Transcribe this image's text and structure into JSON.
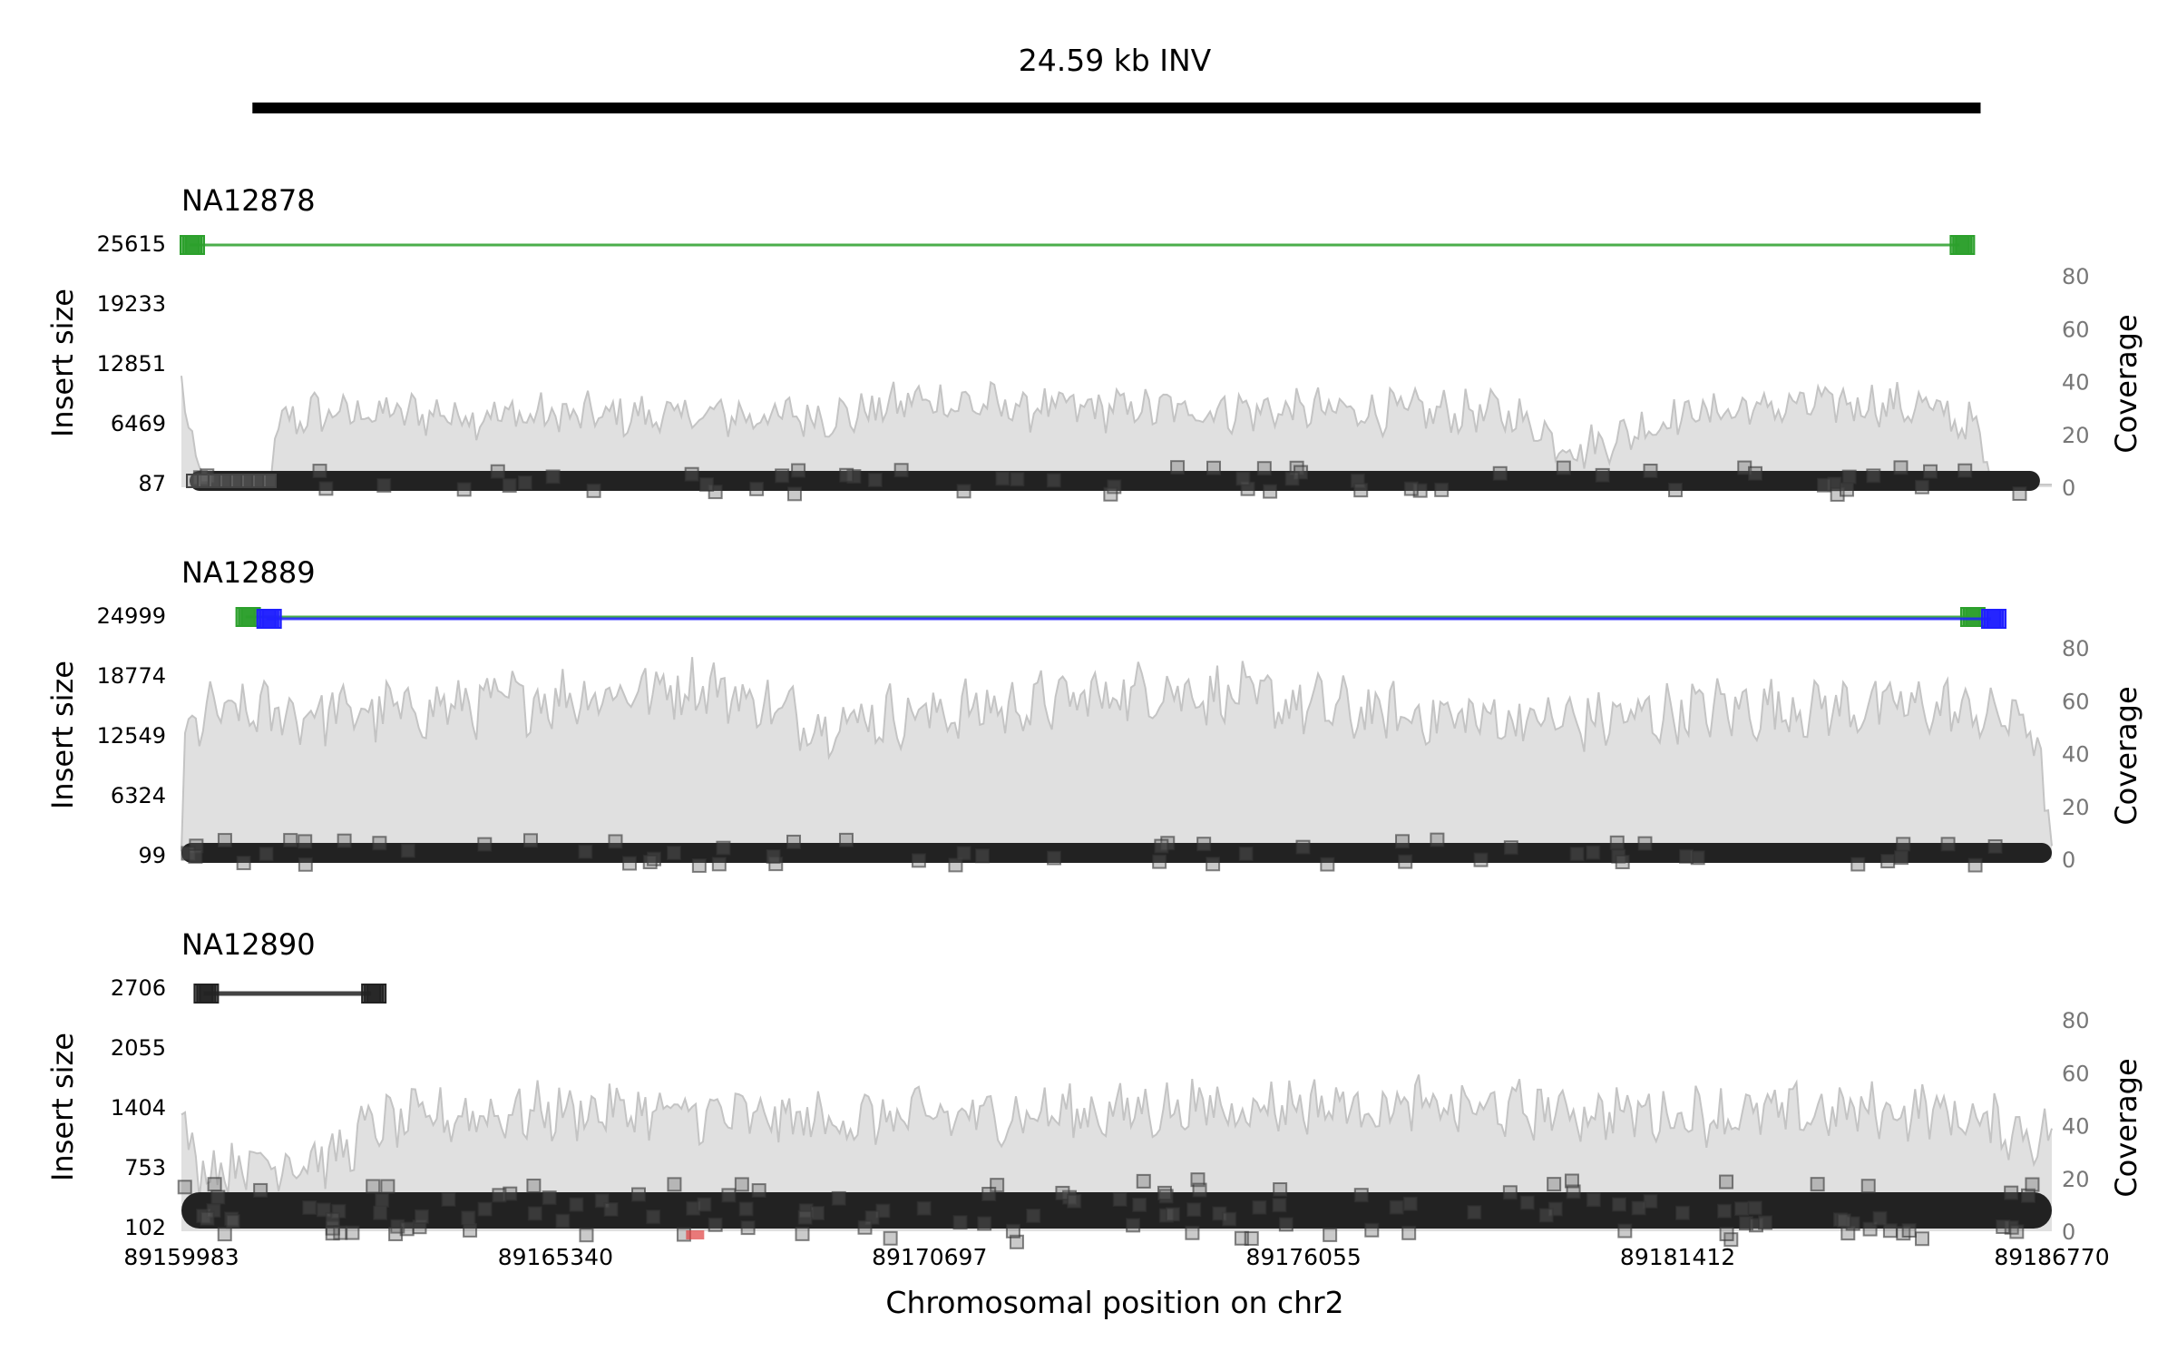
{
  "chart_data": {
    "type": "scatter",
    "title": "24.59 kb INV",
    "sv_type": "INV",
    "sv_length_label": "24.59 kb",
    "xlabel": "Chromosomal position on chr2",
    "xlim": [
      89159983,
      89186770
    ],
    "x_ticks": [
      89159983,
      89165340,
      89170697,
      89176055,
      89181412,
      89186770
    ],
    "x_tick_labels": [
      "89159983",
      "89165340",
      "89170697",
      "89176055",
      "89181412",
      "89186770"
    ],
    "sv_bar": {
      "start": 89161000,
      "end": 89185750
    },
    "colors": {
      "deletion_pairs": "#2ca02c",
      "inversion_pairs": "#1f1fff",
      "normal_pairs": "#222222",
      "split_reads": "#e04040",
      "coverage_fill": "#e0e0e0",
      "coverage_line": "#c4c4c4",
      "sv_bar": "#000000"
    },
    "samples": [
      {
        "name": "NA12878",
        "ylabel": "Insert size",
        "y2label": "Coverage",
        "yticks": [
          "25615",
          "19233",
          "12851",
          "6469",
          "87"
        ],
        "y2ticks": [
          "80",
          "60",
          "40",
          "20",
          "0"
        ],
        "ylim": [
          87,
          25615
        ],
        "coverage_ylim": [
          0,
          80
        ],
        "coverage_profile": [
          [
            89159983,
            40
          ],
          [
            89160100,
            15
          ],
          [
            89160300,
            5
          ],
          [
            89161200,
            3
          ],
          [
            89161400,
            24
          ],
          [
            89161900,
            28
          ],
          [
            89163500,
            28
          ],
          [
            89165000,
            27
          ],
          [
            89169500,
            27
          ],
          [
            89170500,
            33
          ],
          [
            89172000,
            30
          ],
          [
            89176000,
            29
          ],
          [
            89179000,
            28
          ],
          [
            89180000,
            14
          ],
          [
            89181500,
            28
          ],
          [
            89184000,
            32
          ],
          [
            89185000,
            30
          ],
          [
            89185700,
            22
          ],
          [
            89185900,
            2
          ],
          [
            89186500,
            1
          ]
        ],
        "coverage_noise": 7,
        "pairs": [
          {
            "start": 89160100,
            "end": 89185450,
            "insert_size": 25615,
            "color": "deletion_pairs"
          }
        ],
        "normal_band": {
          "start": 89160100,
          "end": 89186600,
          "insert_size": 87
        }
      },
      {
        "name": "NA12889",
        "ylabel": "Insert size",
        "y2label": "Coverage",
        "yticks": [
          "24999",
          "18774",
          "12549",
          "6324",
          "99"
        ],
        "y2ticks": [
          "80",
          "60",
          "40",
          "20",
          "0"
        ],
        "ylim": [
          99,
          24999
        ],
        "coverage_ylim": [
          0,
          80
        ],
        "coverage_profile": [
          [
            89159983,
            3
          ],
          [
            89160050,
            45
          ],
          [
            89160300,
            55
          ],
          [
            89163000,
            56
          ],
          [
            89167500,
            66
          ],
          [
            89169000,
            52
          ],
          [
            89172000,
            58
          ],
          [
            89174000,
            65
          ],
          [
            89177000,
            55
          ],
          [
            89180000,
            52
          ],
          [
            89182000,
            57
          ],
          [
            89185000,
            58
          ],
          [
            89186500,
            52
          ],
          [
            89186770,
            5
          ]
        ],
        "coverage_noise": 10,
        "pairs": [
          {
            "start": 89160900,
            "end": 89185600,
            "insert_size": 24999,
            "color": "deletion_pairs"
          },
          {
            "start": 89161200,
            "end": 89185900,
            "insert_size": 24999,
            "color": "inversion_pairs"
          }
        ],
        "normal_band": {
          "start": 89159983,
          "end": 89186770,
          "insert_size": 99
        }
      },
      {
        "name": "NA12890",
        "ylabel": "Insert size",
        "y2label": "Coverage",
        "yticks": [
          "2706",
          "2055",
          "1404",
          "753",
          "102"
        ],
        "y2ticks": [
          "80",
          "60",
          "40",
          "20",
          "0"
        ],
        "ylim": [
          102,
          2706
        ],
        "coverage_ylim": [
          0,
          80
        ],
        "coverage_profile": [
          [
            89159983,
            40
          ],
          [
            89160200,
            24
          ],
          [
            89161000,
            26
          ],
          [
            89162200,
            28
          ],
          [
            89162700,
            40
          ],
          [
            89164000,
            44
          ],
          [
            89166000,
            46
          ],
          [
            89169000,
            42
          ],
          [
            89172000,
            44
          ],
          [
            89176000,
            48
          ],
          [
            89179000,
            46
          ],
          [
            89182000,
            44
          ],
          [
            89185000,
            46
          ],
          [
            89186600,
            36
          ]
        ],
        "coverage_noise": 9,
        "pairs": [
          {
            "start": 89160300,
            "end": 89162700,
            "insert_size": 2706,
            "color": "normal_pairs"
          }
        ],
        "normal_band": {
          "start": 89159983,
          "end": 89186770,
          "insert_size": 102
        },
        "split_reads": [
          {
            "x": 89167340,
            "insert_size": 102
          }
        ]
      }
    ]
  }
}
